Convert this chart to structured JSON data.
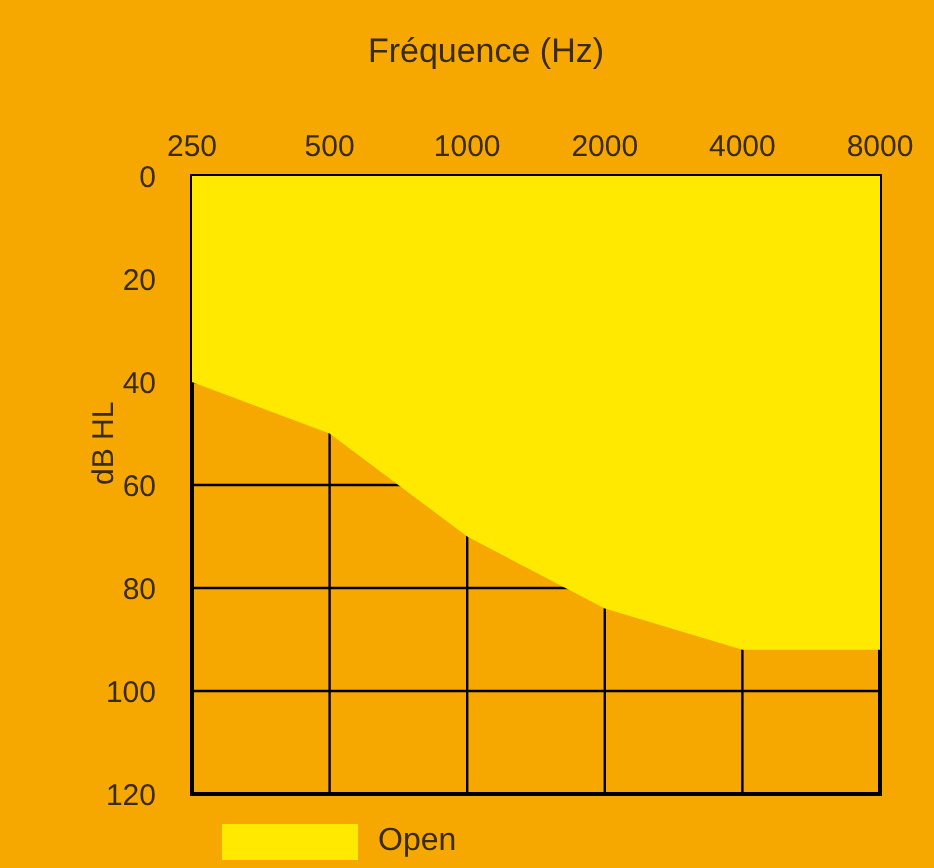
{
  "chart_data": {
    "type": "area",
    "xlabel": "Fréquence (Hz)",
    "ylabel": "dB HL",
    "x": [
      250,
      500,
      1000,
      2000,
      4000,
      8000
    ],
    "series": [
      {
        "name": "Open",
        "color": "#ffe900",
        "values": [
          40,
          50,
          70,
          84,
          92,
          92
        ]
      }
    ],
    "log": "x",
    "xlim": [
      250,
      8000
    ],
    "xticks": [
      250,
      500,
      1000,
      2000,
      4000,
      8000
    ],
    "ylim": [
      120,
      0
    ],
    "yticks": [
      0,
      20,
      40,
      60,
      80,
      100,
      120
    ],
    "grid": true,
    "legend": "bottom"
  }
}
